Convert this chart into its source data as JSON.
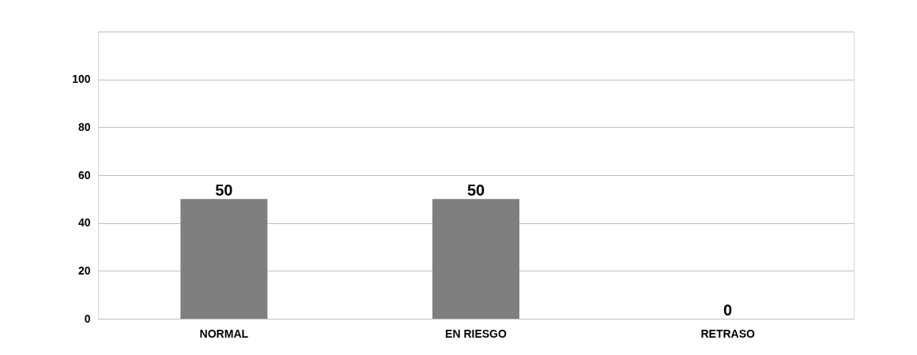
{
  "chart_data": {
    "type": "bar",
    "categories": [
      "NORMAL",
      "EN RIESGO",
      "RETRASO"
    ],
    "values": [
      50,
      50,
      0
    ],
    "color": "#7f7f7f",
    "ylim": [
      0,
      120
    ],
    "yticks": [
      0,
      20,
      40,
      60,
      80,
      100,
      {
        "value": 120,
        "label": null
      }
    ],
    "grid": "y",
    "data_labels": true
  }
}
